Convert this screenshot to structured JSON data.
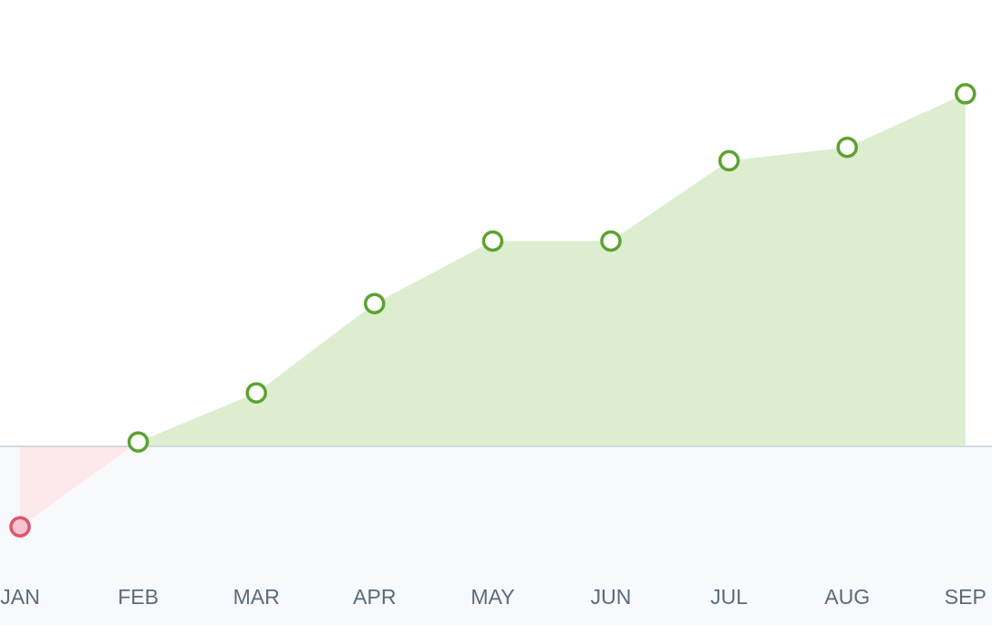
{
  "chart_data": {
    "type": "area",
    "categories": [
      "JAN",
      "FEB",
      "MAR",
      "APR",
      "MAY",
      "JUN",
      "JUL",
      "AUG",
      "SEP"
    ],
    "values": [
      -18,
      1,
      12,
      32,
      46,
      46,
      64,
      67,
      79
    ],
    "ylim": [
      -40,
      100
    ],
    "positive_color": "#5ba331",
    "positive_fill": "#ddedd0",
    "negative_color": "#e0556b",
    "negative_fill": "#fde8ec",
    "negative_point_fill": "#f7c5cf"
  }
}
